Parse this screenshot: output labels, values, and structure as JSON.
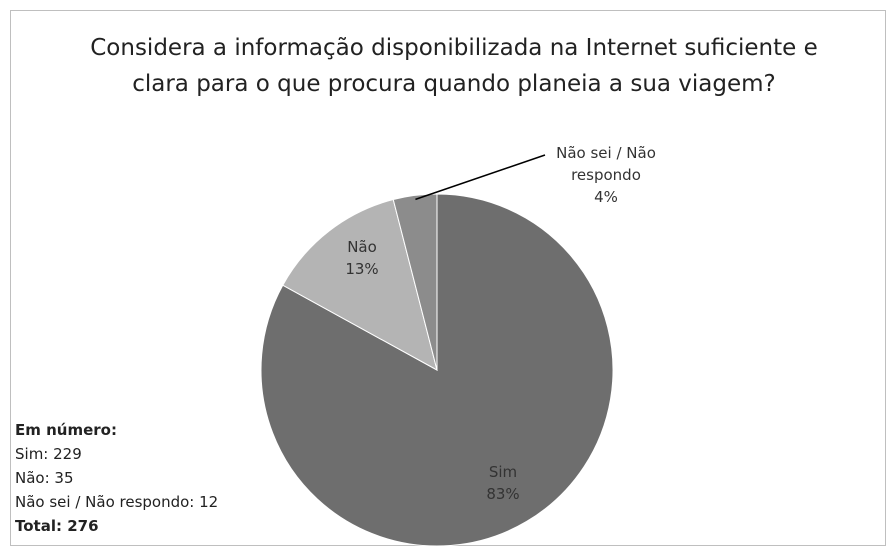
{
  "chart_data": {
    "type": "pie",
    "title": "Considera a informação disponibilizada na Internet suficiente e clara para o que procura quando planeia a sua viagem?",
    "categories": [
      "Sim",
      "Não",
      "Não sei / Não respondo"
    ],
    "values": [
      83,
      13,
      4
    ],
    "value_labels": [
      "83%",
      "13%",
      "4%"
    ],
    "colors": [
      "#6e6e6e",
      "#b4b4b4",
      "#8c8c8c"
    ],
    "annotations": [
      "Em número:",
      "Sim: 229",
      "Não: 35",
      "Não sei / Não respondo: 12",
      "Total: 276"
    ]
  }
}
